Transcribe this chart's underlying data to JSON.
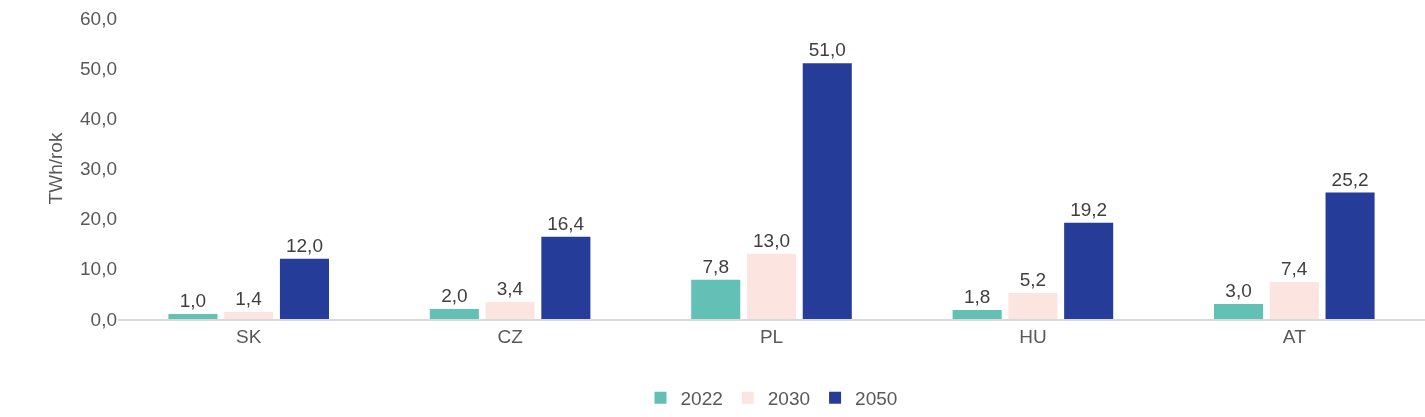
{
  "chart_data": {
    "type": "bar",
    "ylabel": "TWh/rok",
    "categories": [
      "SK",
      "CZ",
      "PL",
      "HU",
      "AT"
    ],
    "series": [
      {
        "name": "2022",
        "color": "#62c0b4",
        "values": [
          1.0,
          2.0,
          7.8,
          1.8,
          3.0
        ],
        "value_labels": [
          "1,0",
          "2,0",
          "7,8",
          "1,8",
          "3,0"
        ]
      },
      {
        "name": "2030",
        "color": "#fce4e0",
        "values": [
          1.4,
          3.4,
          13.0,
          5.2,
          7.4
        ],
        "value_labels": [
          "1,4",
          "3,4",
          "13,0",
          "5,2",
          "7,4"
        ]
      },
      {
        "name": "2050",
        "color": "#263c99",
        "values": [
          12.0,
          16.4,
          51.0,
          19.2,
          25.2
        ],
        "value_labels": [
          "12,0",
          "16,4",
          "51,0",
          "19,2",
          "25,2"
        ]
      }
    ],
    "ylim": [
      0,
      60
    ],
    "yticks": [
      {
        "value": 0,
        "label": "0,0"
      },
      {
        "value": 10,
        "label": "10,0"
      },
      {
        "value": 20,
        "label": "20,0"
      },
      {
        "value": 30,
        "label": "30,0"
      },
      {
        "value": 40,
        "label": "40,0"
      },
      {
        "value": 50,
        "label": "50,0"
      },
      {
        "value": 60,
        "label": "60,0"
      }
    ],
    "legend": "bottom"
  }
}
